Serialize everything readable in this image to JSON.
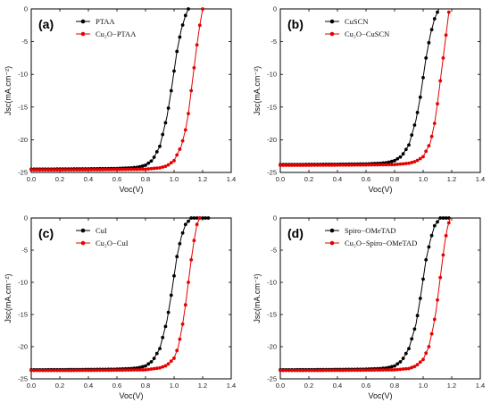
{
  "chart_data": [
    {
      "type": "line",
      "panel_label": "(a)",
      "xlabel": "Voc(V)",
      "ylabel": "Jsc(mA.cm⁻²)",
      "xlim": [
        0.0,
        1.4
      ],
      "ylim": [
        -25,
        0
      ],
      "x_ticks": [
        "0.0",
        "0.2",
        "0.4",
        "0.6",
        "0.8",
        "1.0",
        "1.2",
        "1.4"
      ],
      "y_ticks": [
        "0",
        "-5",
        "-10",
        "-15",
        "-20",
        "-25"
      ],
      "legend_position": "top-left",
      "series": [
        {
          "name": "PTAA",
          "color": "#000000",
          "points": [
            [
              0.0,
              -24.5
            ],
            [
              0.2,
              -24.48
            ],
            [
              0.4,
              -24.45
            ],
            [
              0.6,
              -24.4
            ],
            [
              0.7,
              -24.3
            ],
            [
              0.75,
              -24.2
            ],
            [
              0.8,
              -23.9
            ],
            [
              0.85,
              -23.1
            ],
            [
              0.9,
              -21.0
            ],
            [
              0.95,
              -16.5
            ],
            [
              0.98,
              -12.5
            ],
            [
              1.0,
              -9.5
            ],
            [
              1.02,
              -6.5
            ],
            [
              1.05,
              -3.2
            ],
            [
              1.08,
              -1.0
            ],
            [
              1.1,
              0.0
            ]
          ]
        },
        {
          "name": "Cu₂O−PTAA",
          "color": "#e60000",
          "points": [
            [
              0.0,
              -24.6
            ],
            [
              0.2,
              -24.6
            ],
            [
              0.4,
              -24.58
            ],
            [
              0.6,
              -24.55
            ],
            [
              0.8,
              -24.5
            ],
            [
              0.9,
              -24.3
            ],
            [
              0.95,
              -24.0
            ],
            [
              1.0,
              -23.2
            ],
            [
              1.05,
              -21.0
            ],
            [
              1.08,
              -18.5
            ],
            [
              1.1,
              -16.0
            ],
            [
              1.12,
              -12.5
            ],
            [
              1.14,
              -9.0
            ],
            [
              1.16,
              -5.5
            ],
            [
              1.18,
              -2.5
            ],
            [
              1.2,
              0.0
            ]
          ]
        }
      ]
    },
    {
      "type": "line",
      "panel_label": "(b)",
      "xlabel": "Voc(V)",
      "ylabel": "Jsc(mA.cm⁻²)",
      "xlim": [
        0.0,
        1.4
      ],
      "ylim": [
        -25,
        0
      ],
      "x_ticks": [
        "0.0",
        "0.2",
        "0.4",
        "0.6",
        "0.8",
        "1.0",
        "1.2",
        "1.4"
      ],
      "y_ticks": [
        "0",
        "-5",
        "-10",
        "-15",
        "-20",
        "-25"
      ],
      "legend_position": "top-left",
      "series": [
        {
          "name": "CuSCN",
          "color": "#000000",
          "points": [
            [
              0.0,
              -23.8
            ],
            [
              0.2,
              -23.78
            ],
            [
              0.4,
              -23.75
            ],
            [
              0.6,
              -23.7
            ],
            [
              0.7,
              -23.6
            ],
            [
              0.75,
              -23.5
            ],
            [
              0.8,
              -23.2
            ],
            [
              0.85,
              -22.5
            ],
            [
              0.9,
              -20.8
            ],
            [
              0.95,
              -17.0
            ],
            [
              0.98,
              -13.5
            ],
            [
              1.0,
              -10.5
            ],
            [
              1.02,
              -7.5
            ],
            [
              1.05,
              -4.0
            ],
            [
              1.08,
              -1.5
            ],
            [
              1.11,
              0.0
            ]
          ]
        },
        {
          "name": "Cu₂O−CuSCN",
          "color": "#e60000",
          "points": [
            [
              0.0,
              -23.9
            ],
            [
              0.2,
              -23.9
            ],
            [
              0.4,
              -23.88
            ],
            [
              0.6,
              -23.85
            ],
            [
              0.8,
              -23.8
            ],
            [
              0.9,
              -23.6
            ],
            [
              0.95,
              -23.3
            ],
            [
              1.0,
              -22.6
            ],
            [
              1.05,
              -20.5
            ],
            [
              1.08,
              -17.5
            ],
            [
              1.1,
              -14.5
            ],
            [
              1.12,
              -11.0
            ],
            [
              1.14,
              -7.5
            ],
            [
              1.16,
              -4.0
            ],
            [
              1.18,
              -0.5
            ]
          ]
        }
      ]
    },
    {
      "type": "line",
      "panel_label": "(c)",
      "xlabel": "Voc(V)",
      "ylabel": "Jsc(mA.cm⁻²)",
      "xlim": [
        0.0,
        1.4
      ],
      "ylim": [
        -25,
        0
      ],
      "x_ticks": [
        "0.0",
        "0.2",
        "0.4",
        "0.6",
        "0.8",
        "1.0",
        "1.2",
        "1.4"
      ],
      "y_ticks": [
        "0",
        "-5",
        "-10",
        "-15",
        "-20",
        "-25"
      ],
      "legend_position": "top-left",
      "series": [
        {
          "name": "CuI",
          "color": "#000000",
          "points": [
            [
              0.0,
              -23.6
            ],
            [
              0.2,
              -23.58
            ],
            [
              0.4,
              -23.55
            ],
            [
              0.6,
              -23.5
            ],
            [
              0.7,
              -23.4
            ],
            [
              0.75,
              -23.3
            ],
            [
              0.8,
              -23.0
            ],
            [
              0.85,
              -22.2
            ],
            [
              0.9,
              -20.3
            ],
            [
              0.95,
              -16.0
            ],
            [
              0.98,
              -12.0
            ],
            [
              1.0,
              -9.0
            ],
            [
              1.02,
              -6.0
            ],
            [
              1.05,
              -3.0
            ],
            [
              1.08,
              -1.0
            ],
            [
              1.12,
              0.0
            ],
            [
              1.18,
              0.0
            ],
            [
              1.24,
              0.0
            ]
          ]
        },
        {
          "name": "Cu₂O−CuI",
          "color": "#e60000",
          "points": [
            [
              0.0,
              -23.7
            ],
            [
              0.2,
              -23.7
            ],
            [
              0.4,
              -23.68
            ],
            [
              0.6,
              -23.65
            ],
            [
              0.8,
              -23.6
            ],
            [
              0.9,
              -23.3
            ],
            [
              0.95,
              -22.9
            ],
            [
              1.0,
              -21.8
            ],
            [
              1.03,
              -20.0
            ],
            [
              1.06,
              -16.5
            ],
            [
              1.08,
              -13.5
            ],
            [
              1.1,
              -10.0
            ],
            [
              1.12,
              -6.5
            ],
            [
              1.14,
              -3.5
            ],
            [
              1.16,
              -1.0
            ],
            [
              1.18,
              0.0
            ]
          ]
        }
      ]
    },
    {
      "type": "line",
      "panel_label": "(d)",
      "xlabel": "Voc(V)",
      "ylabel": "Jsc(mA.cm⁻²)",
      "xlim": [
        0.0,
        1.4
      ],
      "ylim": [
        -25,
        0
      ],
      "x_ticks": [
        "0.0",
        "0.2",
        "0.4",
        "0.6",
        "0.8",
        "1.0",
        "1.2",
        "1.4"
      ],
      "y_ticks": [
        "0",
        "-5",
        "-10",
        "-15",
        "-20",
        "-25"
      ],
      "legend_position": "top-left",
      "series": [
        {
          "name": "Spiro−OMeTAD",
          "color": "#000000",
          "points": [
            [
              0.0,
              -23.6
            ],
            [
              0.2,
              -23.58
            ],
            [
              0.4,
              -23.55
            ],
            [
              0.6,
              -23.5
            ],
            [
              0.7,
              -23.4
            ],
            [
              0.75,
              -23.3
            ],
            [
              0.8,
              -23.0
            ],
            [
              0.85,
              -22.2
            ],
            [
              0.9,
              -20.3
            ],
            [
              0.95,
              -16.5
            ],
            [
              0.98,
              -12.5
            ],
            [
              1.0,
              -9.5
            ],
            [
              1.02,
              -6.5
            ],
            [
              1.05,
              -3.5
            ],
            [
              1.08,
              -1.2
            ],
            [
              1.12,
              0.0
            ],
            [
              1.18,
              0.0
            ]
          ]
        },
        {
          "name": "Cu₂O−Spiro−OMeTAD",
          "color": "#e60000",
          "points": [
            [
              0.0,
              -23.7
            ],
            [
              0.2,
              -23.7
            ],
            [
              0.4,
              -23.68
            ],
            [
              0.6,
              -23.65
            ],
            [
              0.8,
              -23.6
            ],
            [
              0.9,
              -23.4
            ],
            [
              0.95,
              -23.0
            ],
            [
              1.0,
              -22.0
            ],
            [
              1.04,
              -20.0
            ],
            [
              1.07,
              -17.0
            ],
            [
              1.09,
              -14.5
            ],
            [
              1.11,
              -11.0
            ],
            [
              1.13,
              -7.5
            ],
            [
              1.15,
              -4.0
            ],
            [
              1.17,
              -1.5
            ],
            [
              1.19,
              0.0
            ]
          ]
        }
      ]
    }
  ]
}
